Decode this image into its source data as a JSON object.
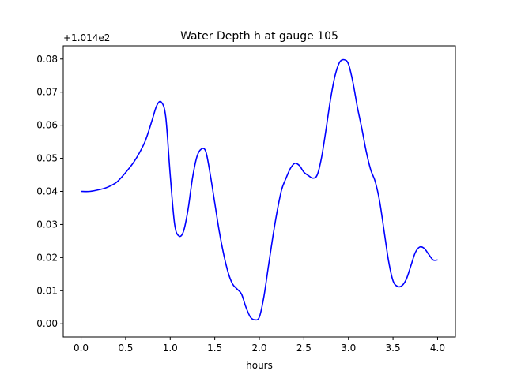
{
  "chart_data": {
    "type": "line",
    "title": "Water Depth h at gauge 105",
    "xlabel": "hours",
    "ylabel": "",
    "offset_label": "+1.014e2",
    "xlim": [
      -0.2,
      4.2
    ],
    "ylim": [
      -0.004,
      0.084
    ],
    "x_ticks": [
      0.0,
      0.5,
      1.0,
      1.5,
      2.0,
      2.5,
      3.0,
      3.5,
      4.0
    ],
    "x_tick_labels": [
      "0.0",
      "0.5",
      "1.0",
      "1.5",
      "2.0",
      "2.5",
      "3.0",
      "3.5",
      "4.0"
    ],
    "y_ticks": [
      0.0,
      0.01,
      0.02,
      0.03,
      0.04,
      0.05,
      0.06,
      0.07,
      0.08
    ],
    "y_tick_labels": [
      "0.00",
      "0.01",
      "0.02",
      "0.03",
      "0.04",
      "0.05",
      "0.06",
      "0.07",
      "0.08"
    ],
    "grid": false,
    "legend": "none",
    "series": [
      {
        "color": "#0000ff",
        "x": [
          0.0,
          0.1,
          0.2,
          0.3,
          0.4,
          0.5,
          0.6,
          0.7,
          0.75,
          0.8,
          0.85,
          0.9,
          0.95,
          1.0,
          1.05,
          1.1,
          1.15,
          1.2,
          1.25,
          1.3,
          1.35,
          1.4,
          1.45,
          1.5,
          1.55,
          1.6,
          1.65,
          1.7,
          1.75,
          1.8,
          1.85,
          1.9,
          1.95,
          2.0,
          2.05,
          2.1,
          2.15,
          2.2,
          2.25,
          2.3,
          2.35,
          2.4,
          2.45,
          2.5,
          2.55,
          2.6,
          2.65,
          2.7,
          2.75,
          2.8,
          2.85,
          2.9,
          2.95,
          3.0,
          3.05,
          3.1,
          3.15,
          3.2,
          3.25,
          3.3,
          3.35,
          3.4,
          3.45,
          3.5,
          3.55,
          3.6,
          3.65,
          3.7,
          3.75,
          3.8,
          3.85,
          3.9,
          3.95,
          4.0
        ],
        "y": [
          0.04,
          0.04,
          0.0405,
          0.0413,
          0.0428,
          0.0457,
          0.0492,
          0.054,
          0.0575,
          0.0618,
          0.066,
          0.067,
          0.0625,
          0.045,
          0.03,
          0.0265,
          0.028,
          0.0345,
          0.044,
          0.0505,
          0.0528,
          0.052,
          0.045,
          0.0365,
          0.028,
          0.021,
          0.0155,
          0.012,
          0.0105,
          0.009,
          0.005,
          0.002,
          0.0012,
          0.002,
          0.008,
          0.017,
          0.026,
          0.034,
          0.0405,
          0.044,
          0.047,
          0.0485,
          0.0478,
          0.0458,
          0.0448,
          0.044,
          0.045,
          0.0505,
          0.059,
          0.068,
          0.075,
          0.079,
          0.0798,
          0.0785,
          0.073,
          0.0655,
          0.059,
          0.052,
          0.0465,
          0.043,
          0.037,
          0.028,
          0.019,
          0.013,
          0.0113,
          0.0115,
          0.0135,
          0.0175,
          0.0215,
          0.0232,
          0.0228,
          0.021,
          0.0193,
          0.0193
        ]
      }
    ]
  }
}
